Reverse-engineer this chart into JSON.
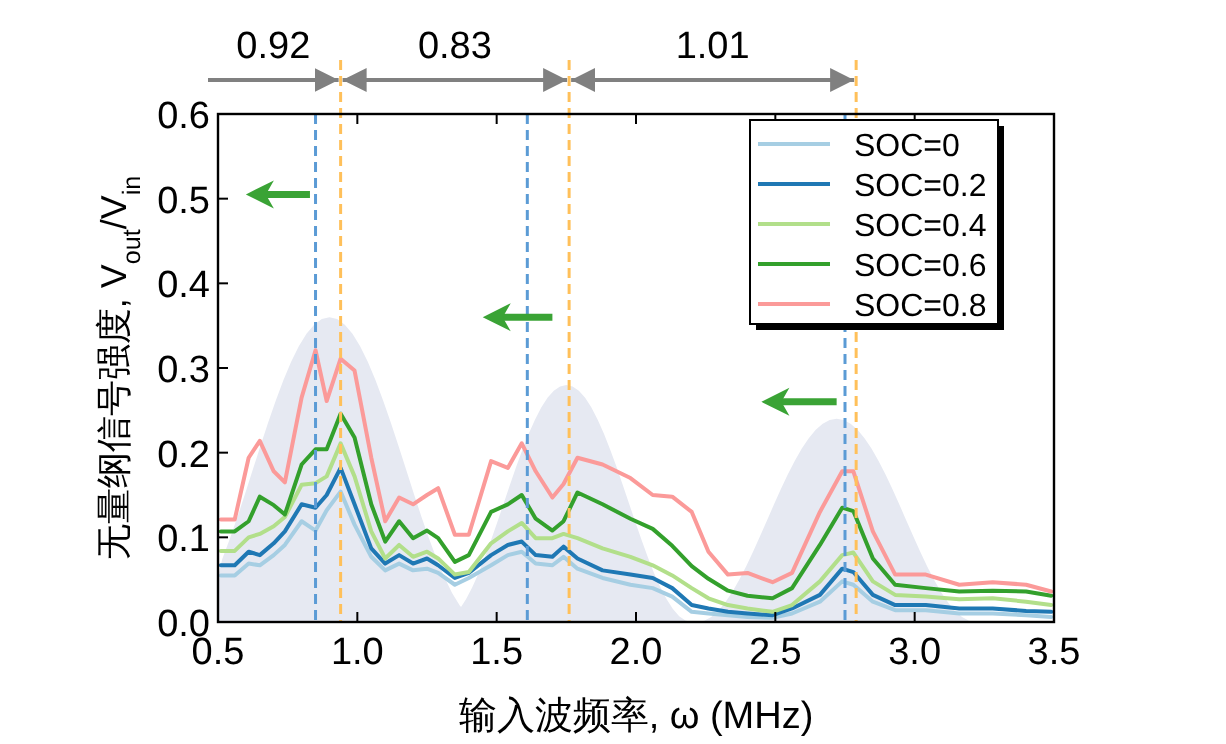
{
  "chart_data": {
    "type": "line",
    "xlabel": "输入波频率, ω (MHz)",
    "ylabel": "无量纲信号强度, V$_{out}$/V$_{in}$",
    "x": [
      0.51,
      0.56,
      0.61,
      0.65,
      0.7,
      0.74,
      0.8,
      0.85,
      0.89,
      0.94,
      0.99,
      1.05,
      1.1,
      1.15,
      1.2,
      1.25,
      1.29,
      1.35,
      1.4,
      1.48,
      1.54,
      1.59,
      1.64,
      1.7,
      1.74,
      1.79,
      1.88,
      1.98,
      2.06,
      2.13,
      2.2,
      2.26,
      2.33,
      2.4,
      2.49,
      2.56,
      2.66,
      2.74,
      2.78,
      2.85,
      2.93,
      3.04,
      3.16,
      3.28,
      3.4,
      3.49
    ],
    "series": [
      {
        "name": "SOC=0",
        "color": "#a6cee3",
        "values": [
          0.055,
          0.055,
          0.069,
          0.067,
          0.079,
          0.091,
          0.119,
          0.108,
          0.132,
          0.154,
          0.115,
          0.077,
          0.061,
          0.069,
          0.061,
          0.063,
          0.058,
          0.044,
          0.052,
          0.067,
          0.079,
          0.083,
          0.069,
          0.067,
          0.077,
          0.063,
          0.052,
          0.044,
          0.04,
          0.03,
          0.012,
          0.01,
          0.008,
          0.006,
          0.005,
          0.01,
          0.024,
          0.048,
          0.044,
          0.024,
          0.014,
          0.014,
          0.01,
          0.01,
          0.008,
          0.006
        ]
      },
      {
        "name": "SOC=0.2",
        "color": "#1f78b4",
        "values": [
          0.067,
          0.067,
          0.083,
          0.079,
          0.093,
          0.107,
          0.139,
          0.135,
          0.15,
          0.182,
          0.139,
          0.087,
          0.069,
          0.079,
          0.069,
          0.075,
          0.067,
          0.052,
          0.058,
          0.079,
          0.091,
          0.095,
          0.079,
          0.077,
          0.089,
          0.075,
          0.061,
          0.056,
          0.052,
          0.04,
          0.02,
          0.016,
          0.012,
          0.01,
          0.008,
          0.016,
          0.032,
          0.063,
          0.059,
          0.032,
          0.02,
          0.02,
          0.016,
          0.016,
          0.013,
          0.012
        ]
      },
      {
        "name": "SOC=0.4",
        "color": "#b2df8a",
        "values": [
          0.084,
          0.084,
          0.1,
          0.104,
          0.113,
          0.124,
          0.162,
          0.164,
          0.172,
          0.211,
          0.172,
          0.107,
          0.075,
          0.091,
          0.077,
          0.083,
          0.075,
          0.056,
          0.059,
          0.093,
          0.107,
          0.117,
          0.099,
          0.099,
          0.104,
          0.099,
          0.087,
          0.077,
          0.067,
          0.055,
          0.04,
          0.028,
          0.02,
          0.016,
          0.012,
          0.02,
          0.048,
          0.079,
          0.082,
          0.048,
          0.032,
          0.03,
          0.027,
          0.028,
          0.024,
          0.02
        ]
      },
      {
        "name": "SOC=0.6",
        "color": "#33a02c",
        "values": [
          0.107,
          0.107,
          0.119,
          0.148,
          0.138,
          0.127,
          0.186,
          0.204,
          0.204,
          0.246,
          0.218,
          0.139,
          0.095,
          0.119,
          0.099,
          0.108,
          0.099,
          0.071,
          0.079,
          0.13,
          0.139,
          0.15,
          0.122,
          0.108,
          0.119,
          0.153,
          0.139,
          0.122,
          0.11,
          0.09,
          0.066,
          0.051,
          0.037,
          0.031,
          0.028,
          0.04,
          0.091,
          0.135,
          0.131,
          0.075,
          0.044,
          0.04,
          0.036,
          0.037,
          0.036,
          0.031
        ]
      },
      {
        "name": "SOC=0.8",
        "color": "#fb9a99",
        "values": [
          0.121,
          0.121,
          0.194,
          0.214,
          0.178,
          0.165,
          0.265,
          0.321,
          0.261,
          0.311,
          0.297,
          0.194,
          0.119,
          0.147,
          0.139,
          0.15,
          0.158,
          0.103,
          0.103,
          0.19,
          0.182,
          0.211,
          0.178,
          0.147,
          0.163,
          0.194,
          0.186,
          0.17,
          0.15,
          0.148,
          0.13,
          0.083,
          0.056,
          0.058,
          0.047,
          0.058,
          0.13,
          0.178,
          0.178,
          0.107,
          0.056,
          0.056,
          0.044,
          0.047,
          0.044,
          0.036
        ]
      }
    ],
    "xlim": [
      0.5,
      3.5
    ],
    "xticks": [
      {
        "value": 0.5,
        "label": "0.5"
      },
      {
        "value": 1,
        "label": "1.0"
      },
      {
        "value": 1.5,
        "label": "1.5"
      },
      {
        "value": 2,
        "label": "2.0"
      },
      {
        "value": 2.5,
        "label": "2.5"
      },
      {
        "value": 3,
        "label": "3.0"
      },
      {
        "value": 3.5,
        "label": "3.5"
      }
    ],
    "ylim": [
      0,
      0.6
    ],
    "yticks": [
      {
        "value": 0,
        "label": "0.0"
      },
      0.1,
      0.2,
      0.3,
      0.4,
      0.5,
      0.6
    ],
    "ref_lines": [
      {
        "axis": "x",
        "value": 0.85,
        "color": "#5b9bd5",
        "line_style": "dashed"
      },
      {
        "axis": "x",
        "value": 0.94,
        "color": "#ffc05a",
        "line_style": "dashed"
      },
      {
        "axis": "x",
        "value": 1.61,
        "color": "#5b9bd5",
        "line_style": "dashed"
      },
      {
        "axis": "x",
        "value": 1.76,
        "color": "#ffc05a",
        "line_style": "dashed"
      },
      {
        "axis": "x",
        "value": 2.75,
        "color": "#5b9bd5",
        "line_style": "dashed"
      },
      {
        "axis": "x",
        "value": 2.79,
        "color": "#ffc05a",
        "line_style": "dashed"
      }
    ],
    "annotations": [
      "0.92",
      "0.83",
      "1.01"
    ],
    "legend": "top right",
    "grid": false,
    "marker": "none",
    "line_style": "solid"
  }
}
